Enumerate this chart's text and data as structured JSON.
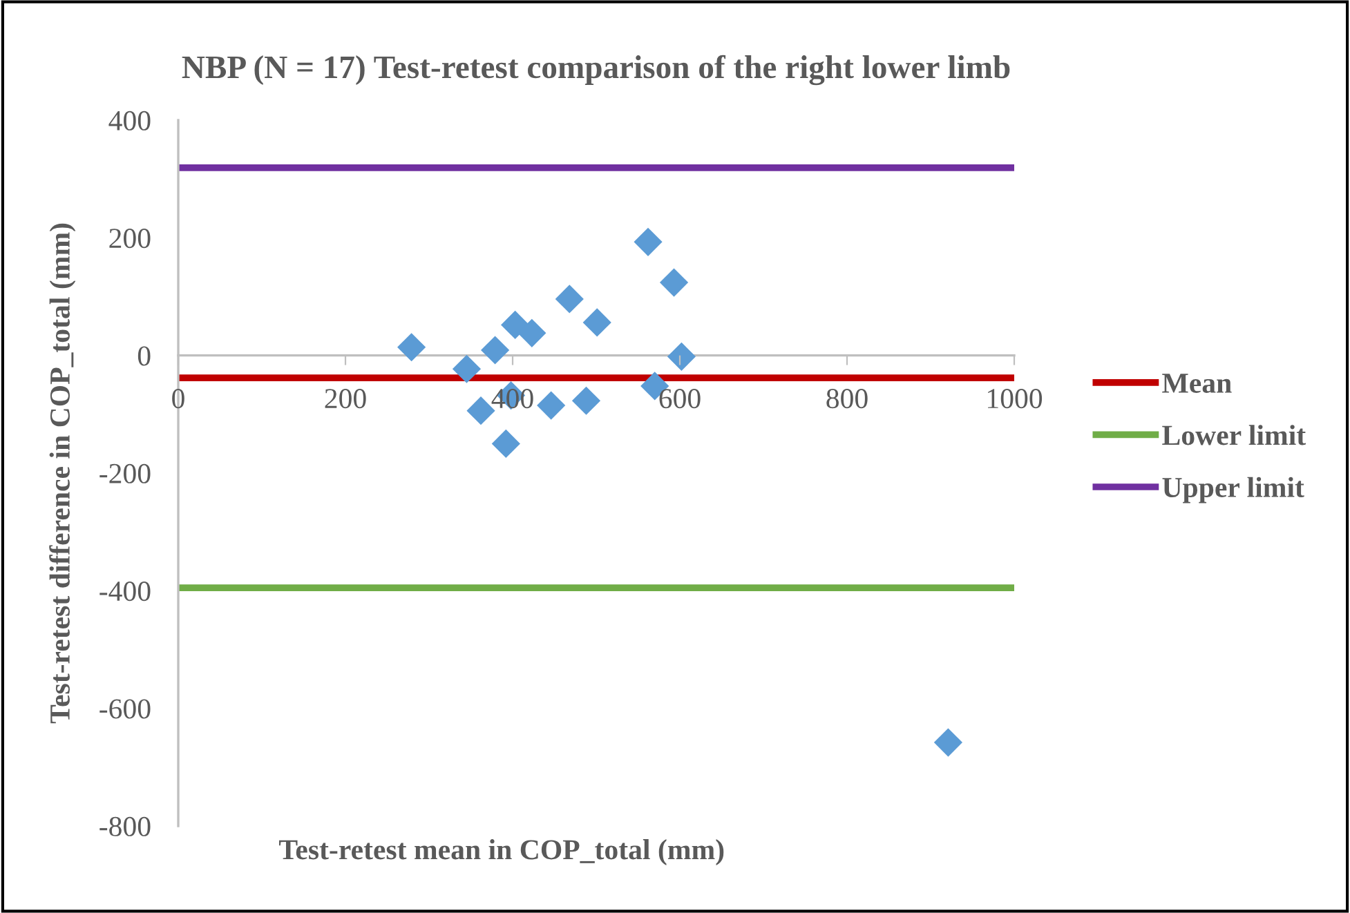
{
  "chart_data": {
    "type": "scatter",
    "title": "NBP (N = 17) Test-retest comparison of the right lower limb",
    "xlabel": "Test-retest mean in COP_total (mm)",
    "ylabel": "Test-retest difference in COP_total (mm)",
    "xlim": [
      0,
      1000
    ],
    "xticks": [
      0,
      200,
      400,
      600,
      800,
      1000
    ],
    "ylim": [
      -800,
      400
    ],
    "yticks": [
      -800,
      -600,
      -400,
      -200,
      0,
      200,
      400
    ],
    "grid": false,
    "legend": "right",
    "series": [
      {
        "marker": "diamond",
        "color": "#5b9bd5",
        "x": [
          279,
          345,
          362,
          379,
          392,
          398,
          403,
          423,
          446,
          468,
          488,
          501,
          562,
          570,
          593,
          602,
          921
        ],
        "values": [
          14,
          -23,
          -94,
          9,
          -150,
          -68,
          52,
          38,
          -85,
          96,
          -77,
          56,
          193,
          -52,
          124,
          -2,
          -658
        ]
      },
      {
        "type": "line",
        "name": "Mean",
        "color": "#c00000",
        "x": [
          0,
          1000
        ],
        "values": [
          -38,
          -38
        ]
      },
      {
        "type": "line",
        "name": "Lower limit",
        "color": "#70ad47",
        "x": [
          0,
          1000
        ],
        "values": [
          -395,
          -395
        ]
      },
      {
        "type": "line",
        "name": "Upper limit",
        "color": "#7030a0",
        "x": [
          0,
          1000
        ],
        "values": [
          319,
          319
        ]
      }
    ]
  }
}
